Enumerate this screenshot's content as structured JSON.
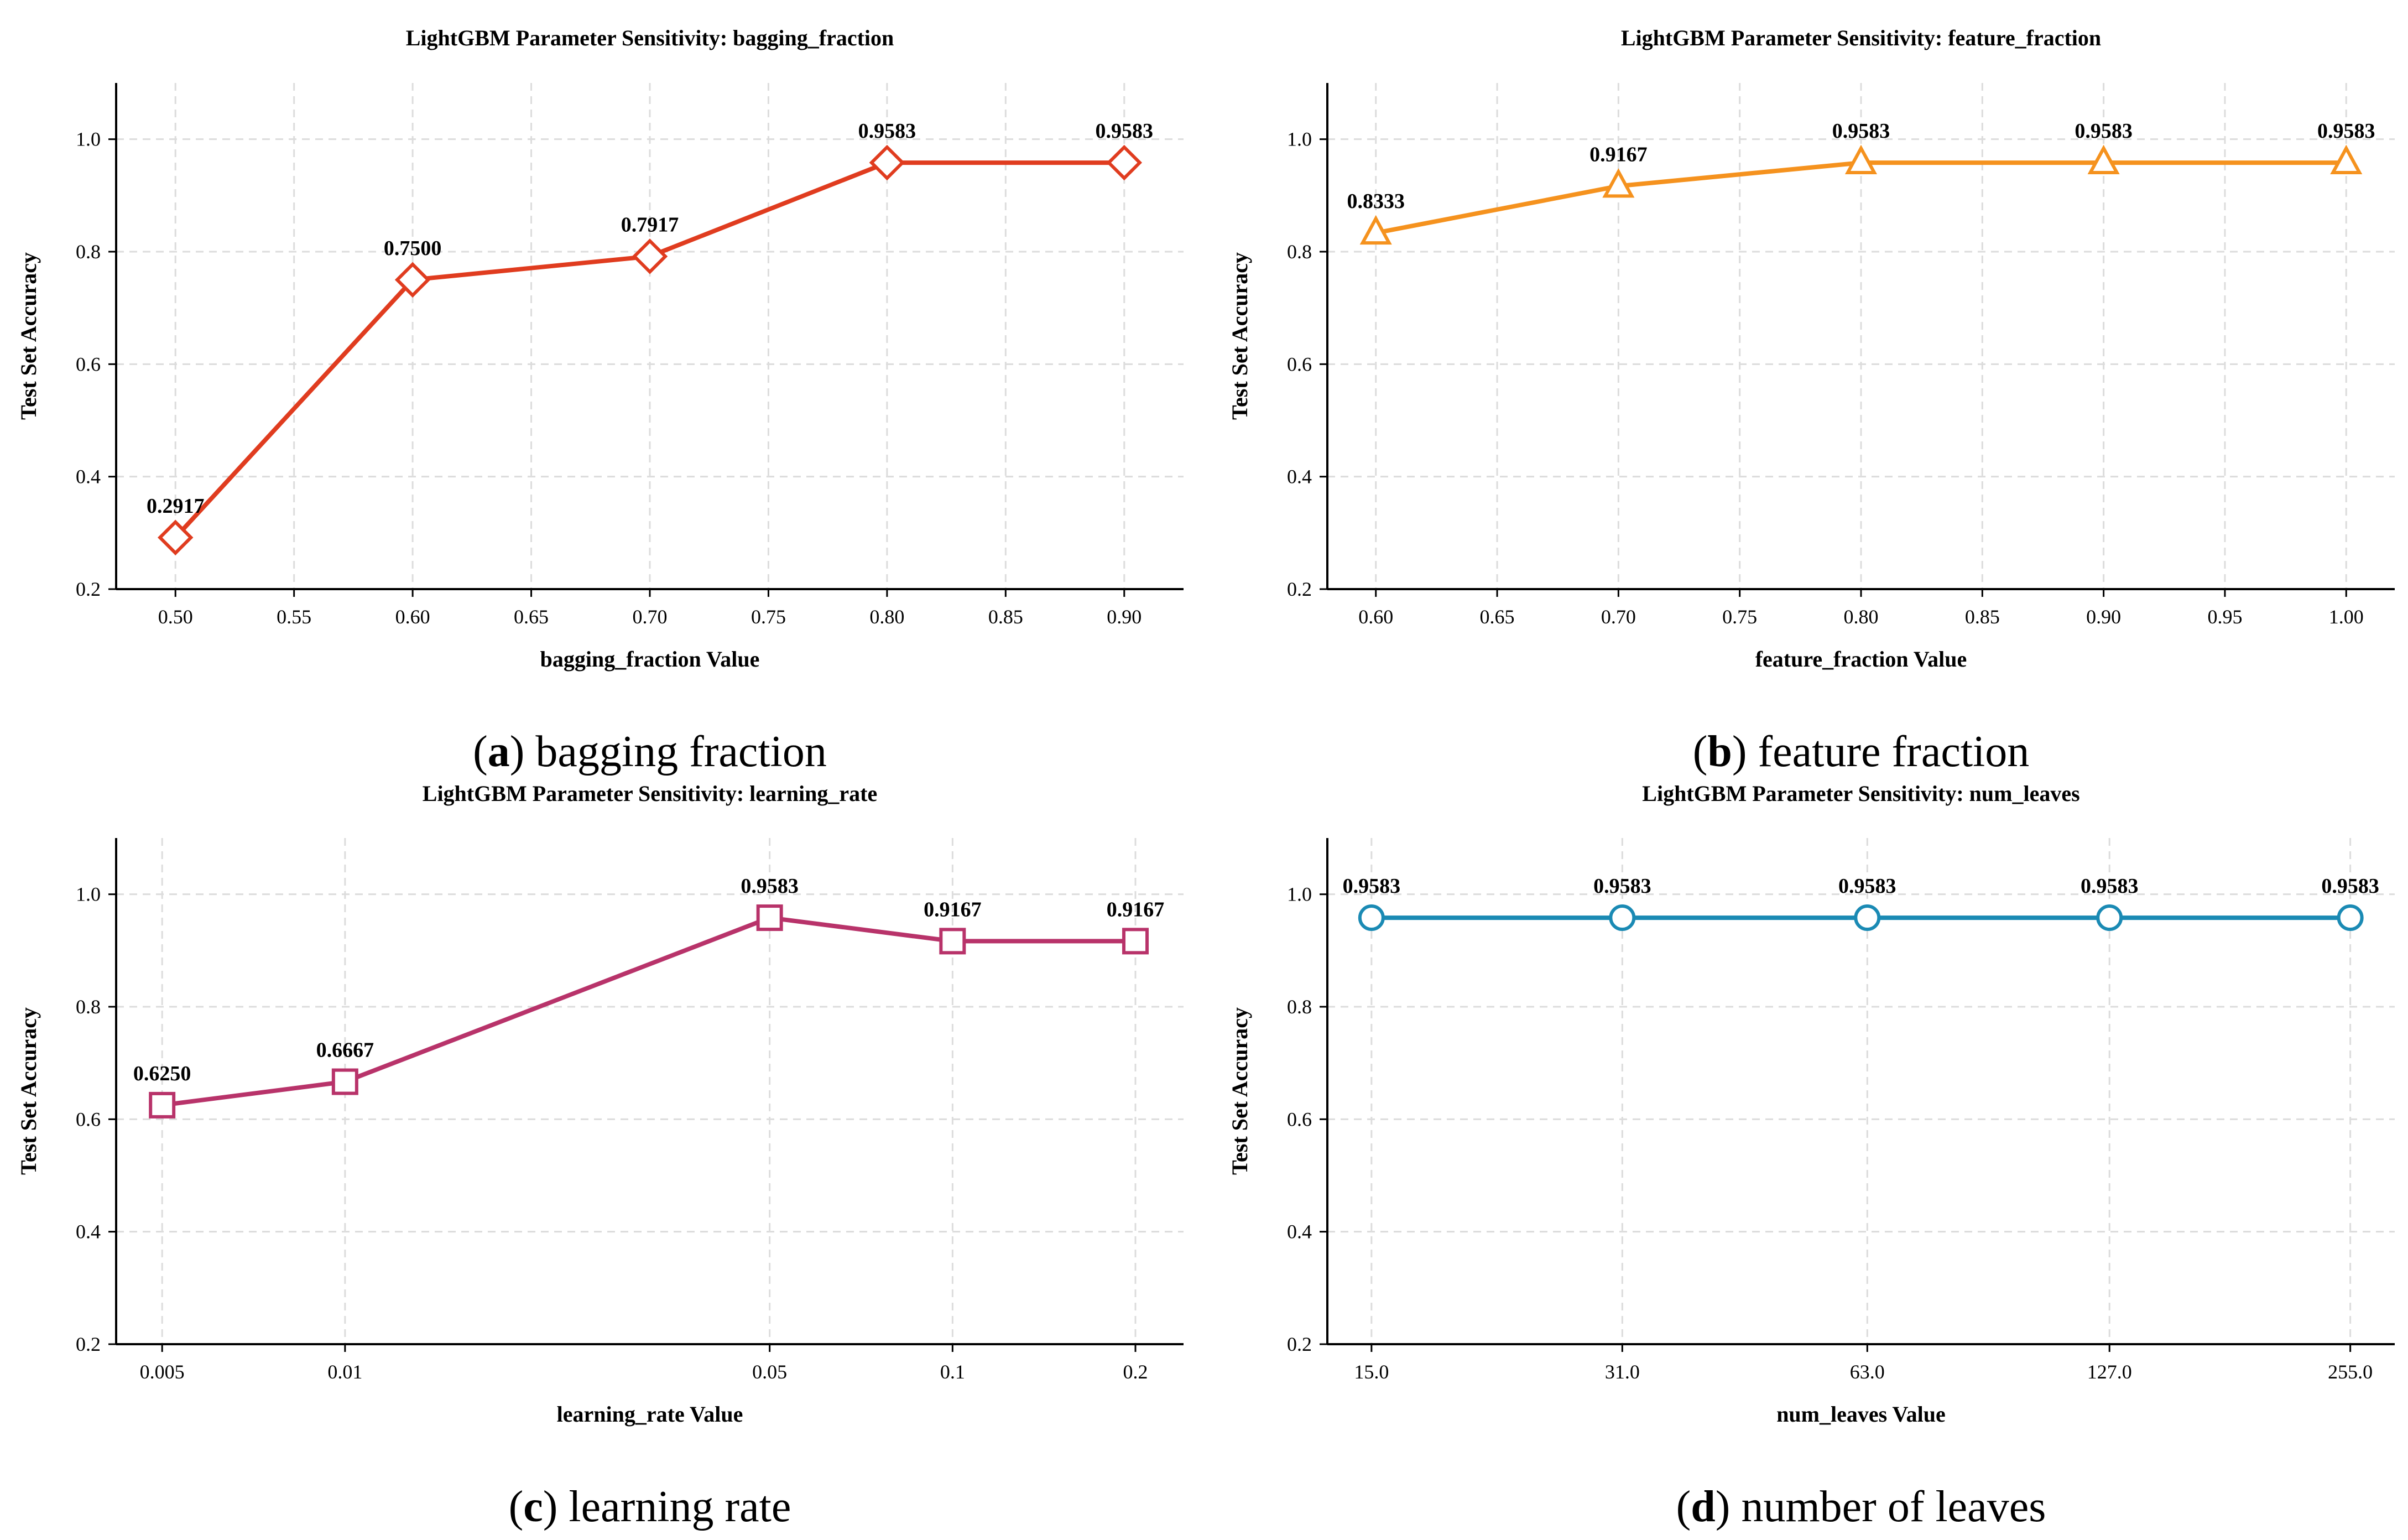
{
  "chart_data": [
    {
      "id": "a",
      "type": "line",
      "title": "LightGBM Parameter Sensitivity: bagging_fraction",
      "xlabel": "bagging_fraction Value",
      "ylabel": "Test Set Accuracy",
      "xscale": "linear",
      "xlim": [
        0.475,
        0.925
      ],
      "ylim": [
        0.2,
        1.1
      ],
      "xticks": [
        0.5,
        0.55,
        0.6,
        0.65,
        0.7,
        0.75,
        0.8,
        0.85,
        0.9
      ],
      "xtick_labels": [
        "0.50",
        "0.55",
        "0.60",
        "0.65",
        "0.70",
        "0.75",
        "0.80",
        "0.85",
        "0.90"
      ],
      "yticks": [
        0.2,
        0.4,
        0.6,
        0.8,
        1.0
      ],
      "ytick_labels": [
        "0.2",
        "0.4",
        "0.6",
        "0.8",
        "1.0"
      ],
      "x": [
        0.5,
        0.6,
        0.7,
        0.8,
        0.9
      ],
      "y": [
        0.2917,
        0.75,
        0.7917,
        0.9583,
        0.9583
      ],
      "data_labels": [
        "0.2917",
        "0.7500",
        "0.7917",
        "0.9583",
        "0.9583"
      ],
      "color": "#e03c1f",
      "marker": "diamond",
      "grid": true,
      "caption_letter": "a",
      "caption_text": "bagging fraction"
    },
    {
      "id": "b",
      "type": "line",
      "title": "LightGBM Parameter Sensitivity: feature_fraction",
      "xlabel": "feature_fraction Value",
      "ylabel": "Test Set Accuracy",
      "xscale": "linear",
      "xlim": [
        0.58,
        1.02
      ],
      "ylim": [
        0.2,
        1.1
      ],
      "xticks": [
        0.6,
        0.65,
        0.7,
        0.75,
        0.8,
        0.85,
        0.9,
        0.95,
        1.0
      ],
      "xtick_labels": [
        "0.60",
        "0.65",
        "0.70",
        "0.75",
        "0.80",
        "0.85",
        "0.90",
        "0.95",
        "1.00"
      ],
      "yticks": [
        0.2,
        0.4,
        0.6,
        0.8,
        1.0
      ],
      "ytick_labels": [
        "0.2",
        "0.4",
        "0.6",
        "0.8",
        "1.0"
      ],
      "x": [
        0.6,
        0.7,
        0.8,
        0.9,
        1.0
      ],
      "y": [
        0.8333,
        0.9167,
        0.9583,
        0.9583,
        0.9583
      ],
      "data_labels": [
        "0.8333",
        "0.9167",
        "0.9583",
        "0.9583",
        "0.9583"
      ],
      "color": "#f5921e",
      "marker": "triangle",
      "grid": true,
      "caption_letter": "b",
      "caption_text": "feature fraction"
    },
    {
      "id": "c",
      "type": "line",
      "title": "LightGBM Parameter Sensitivity: learning_rate",
      "xlabel": "learning_rate Value",
      "ylabel": "Test Set Accuracy",
      "xscale": "log",
      "xlim": [
        0.0042,
        0.24
      ],
      "ylim": [
        0.2,
        1.1
      ],
      "xticks": [
        0.005,
        0.01,
        0.05,
        0.1,
        0.2
      ],
      "xtick_labels": [
        "0.005",
        "0.01",
        "0.05",
        "0.1",
        "0.2"
      ],
      "yticks": [
        0.2,
        0.4,
        0.6,
        0.8,
        1.0
      ],
      "ytick_labels": [
        "0.2",
        "0.4",
        "0.6",
        "0.8",
        "1.0"
      ],
      "x": [
        0.005,
        0.01,
        0.05,
        0.1,
        0.2
      ],
      "y": [
        0.625,
        0.6667,
        0.9583,
        0.9167,
        0.9167
      ],
      "data_labels": [
        "0.6250",
        "0.6667",
        "0.9583",
        "0.9167",
        "0.9167"
      ],
      "color": "#b8336a",
      "marker": "square",
      "grid": true,
      "caption_letter": "c",
      "caption_text": "learning rate"
    },
    {
      "id": "d",
      "type": "line",
      "title": "LightGBM Parameter Sensitivity: num_leaves",
      "xlabel": "num_leaves Value",
      "ylabel": "Test Set Accuracy",
      "xscale": "log",
      "xlim": [
        13.2,
        290
      ],
      "ylim": [
        0.2,
        1.1
      ],
      "xticks": [
        15,
        31,
        63,
        127,
        255
      ],
      "xtick_labels": [
        "15.0",
        "31.0",
        "63.0",
        "127.0",
        "255.0"
      ],
      "yticks": [
        0.2,
        0.4,
        0.6,
        0.8,
        1.0
      ],
      "ytick_labels": [
        "0.2",
        "0.4",
        "0.6",
        "0.8",
        "1.0"
      ],
      "x": [
        15,
        31,
        63,
        127,
        255
      ],
      "y": [
        0.9583,
        0.9583,
        0.9583,
        0.9583,
        0.9583
      ],
      "data_labels": [
        "0.9583",
        "0.9583",
        "0.9583",
        "0.9583",
        "0.9583"
      ],
      "color": "#1a8ab4",
      "marker": "circle",
      "grid": true,
      "caption_letter": "d",
      "caption_text": "number of leaves"
    }
  ]
}
